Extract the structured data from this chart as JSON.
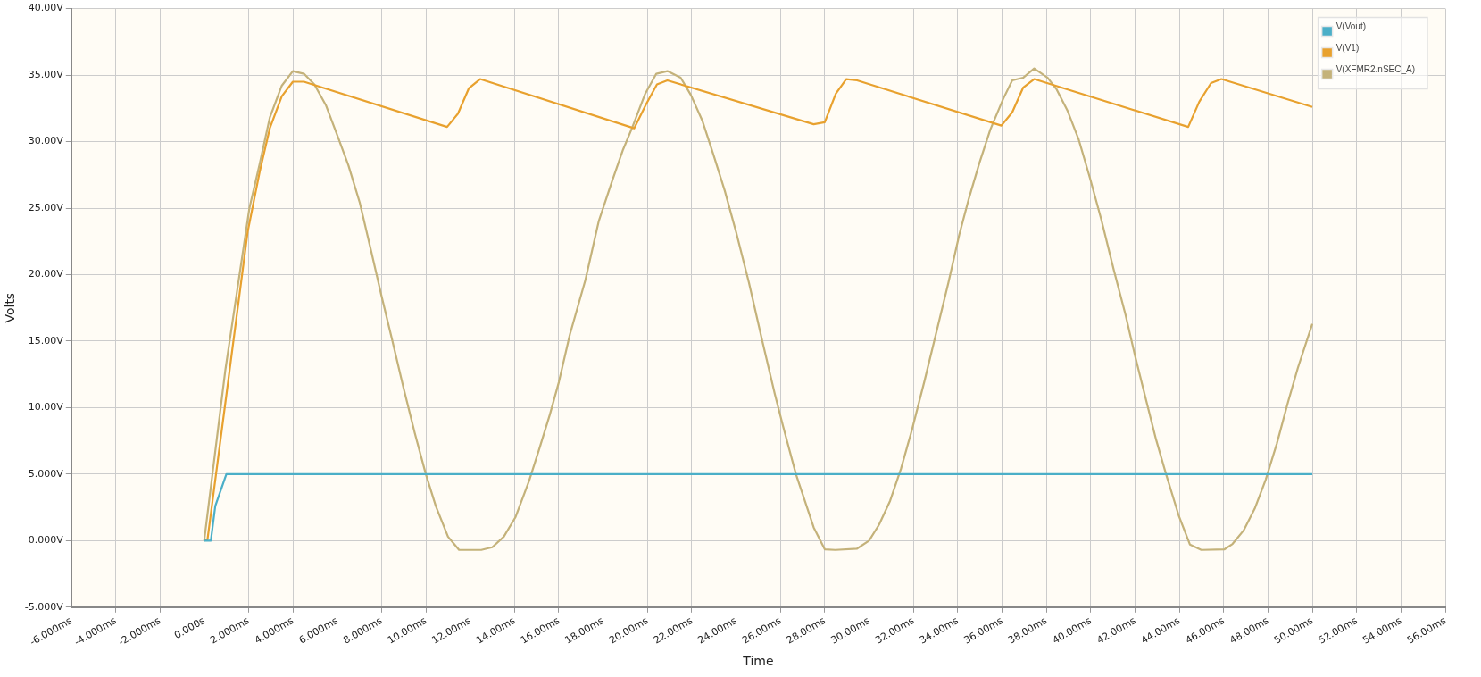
{
  "chart_data": {
    "type": "line",
    "xlabel": "Time",
    "ylabel": "Volts",
    "xlim": [
      -6,
      56
    ],
    "ylim": [
      -5,
      40
    ],
    "xticks": [
      {
        "value": -6,
        "label": "-6.000ms"
      },
      {
        "value": -4,
        "label": "-4.000ms"
      },
      {
        "value": -2,
        "label": "-2.000ms"
      },
      {
        "value": 0,
        "label": "0.000s"
      },
      {
        "value": 2,
        "label": "2.000ms"
      },
      {
        "value": 4,
        "label": "4.000ms"
      },
      {
        "value": 6,
        "label": "6.000ms"
      },
      {
        "value": 8,
        "label": "8.000ms"
      },
      {
        "value": 10,
        "label": "10.00ms"
      },
      {
        "value": 12,
        "label": "12.00ms"
      },
      {
        "value": 14,
        "label": "14.00ms"
      },
      {
        "value": 16,
        "label": "16.00ms"
      },
      {
        "value": 18,
        "label": "18.00ms"
      },
      {
        "value": 20,
        "label": "20.00ms"
      },
      {
        "value": 22,
        "label": "22.00ms"
      },
      {
        "value": 24,
        "label": "24.00ms"
      },
      {
        "value": 26,
        "label": "26.00ms"
      },
      {
        "value": 28,
        "label": "28.00ms"
      },
      {
        "value": 30,
        "label": "30.00ms"
      },
      {
        "value": 32,
        "label": "32.00ms"
      },
      {
        "value": 34,
        "label": "34.00ms"
      },
      {
        "value": 36,
        "label": "36.00ms"
      },
      {
        "value": 38,
        "label": "38.00ms"
      },
      {
        "value": 40,
        "label": "40.00ms"
      },
      {
        "value": 42,
        "label": "42.00ms"
      },
      {
        "value": 44,
        "label": "44.00ms"
      },
      {
        "value": 46,
        "label": "46.00ms"
      },
      {
        "value": 48,
        "label": "48.00ms"
      },
      {
        "value": 50,
        "label": "50.00ms"
      },
      {
        "value": 52,
        "label": "52.00ms"
      },
      {
        "value": 54,
        "label": "54.00ms"
      },
      {
        "value": 56,
        "label": "56.00ms"
      }
    ],
    "yticks": [
      {
        "value": -5,
        "label": "-5.000V"
      },
      {
        "value": 0,
        "label": "0.000V"
      },
      {
        "value": 5,
        "label": "5.000V"
      },
      {
        "value": 10,
        "label": "10.00V"
      },
      {
        "value": 15,
        "label": "15.00V"
      },
      {
        "value": 20,
        "label": "20.00V"
      },
      {
        "value": 25,
        "label": "25.00V"
      },
      {
        "value": 30,
        "label": "30.00V"
      },
      {
        "value": 35,
        "label": "35.00V"
      },
      {
        "value": 40,
        "label": "40.00V"
      }
    ],
    "grid": true,
    "legend": "top right",
    "marker": "none",
    "line_style": "solid",
    "series": [
      {
        "name": "V(Vout)",
        "color": "#4bafc8",
        "x": [
          0,
          0.3,
          0.5,
          1.0,
          50
        ],
        "values": [
          0,
          0,
          2.6,
          5,
          5
        ]
      },
      {
        "name": "V(V1)",
        "color": "#e8a12e",
        "x": [
          0,
          0.15,
          1.96,
          2.5,
          2.96,
          3.5,
          4.0,
          4.5,
          10.96,
          11.45,
          11.94,
          12.45,
          19.4,
          19.94,
          20.43,
          20.9,
          27.5,
          28.0,
          28.5,
          28.97,
          29.46,
          35.97,
          36.46,
          36.95,
          37.45,
          44.4,
          44.9,
          45.43,
          45.9,
          50
        ],
        "values": [
          0,
          0.1,
          23.2,
          27.7,
          31,
          33.4,
          34.5,
          34.5,
          31.1,
          32.1,
          34,
          34.7,
          31,
          32.8,
          34.3,
          34.6,
          31.3,
          31.45,
          33.6,
          34.7,
          34.6,
          31.2,
          32.2,
          34.05,
          34.7,
          31.1,
          33,
          34.4,
          34.7,
          32.6
        ]
      },
      {
        "name": "V(XFMR2.nSEC_A)",
        "color": "#c4b27a",
        "x": [
          0,
          0.96,
          2.04,
          2.5,
          2.96,
          3.5,
          4.0,
          4.5,
          4.97,
          5.5,
          6.0,
          6.51,
          7.02,
          7.53,
          8.0,
          8.48,
          8.99,
          9.5,
          10.0,
          10.45,
          11.0,
          11.5,
          12.5,
          13.0,
          13.52,
          14.04,
          14.66,
          15.1,
          15.6,
          16.0,
          16.5,
          17.2,
          17.8,
          18.4,
          18.9,
          19.3,
          19.9,
          20.4,
          20.9,
          21.5,
          21.96,
          22.47,
          22.98,
          23.49,
          24.0,
          24.58,
          25.17,
          25.75,
          26.12,
          26.7,
          27.0,
          27.5,
          28.0,
          28.48,
          29.46,
          30.0,
          30.45,
          30.95,
          31.44,
          31.93,
          32.5,
          33.1,
          33.58,
          34.07,
          34.5,
          34.98,
          35.47,
          36.05,
          36.46,
          36.95,
          37.45,
          38.06,
          38.47,
          38.96,
          39.45,
          39.96,
          40.47,
          41.05,
          41.57,
          42.0,
          42.51,
          42.95,
          43.4,
          43.97,
          44.48,
          44.99,
          46.04,
          46.4,
          46.9,
          47.4,
          47.9,
          48.4,
          48.9,
          49.35,
          50
        ],
        "values": [
          0,
          12.9,
          25,
          28.3,
          31.8,
          34.2,
          35.3,
          35.1,
          34.3,
          32.7,
          30.5,
          28.2,
          25.4,
          21.8,
          18.4,
          15.1,
          11.5,
          8.1,
          5,
          2.6,
          0.3,
          -0.7,
          -0.7,
          -0.5,
          0.3,
          1.75,
          4.5,
          6.8,
          9.5,
          11.9,
          15.5,
          19.6,
          24,
          27,
          29.4,
          31,
          33.6,
          35.1,
          35.3,
          34.8,
          33.5,
          31.6,
          29,
          26.3,
          23.2,
          19.4,
          15.1,
          11,
          8.6,
          5,
          3.5,
          1,
          -0.65,
          -0.7,
          -0.6,
          0,
          1.2,
          3,
          5.4,
          8.3,
          12,
          16.1,
          19.4,
          23,
          25.7,
          28.4,
          30.9,
          33.2,
          34.6,
          34.8,
          35.5,
          34.8,
          33.9,
          32.3,
          30.2,
          27.3,
          24.2,
          20.3,
          17,
          13.9,
          10.5,
          7.6,
          5,
          1.9,
          -0.3,
          -0.7,
          -0.65,
          -0.25,
          0.77,
          2.4,
          4.6,
          7.3,
          10.4,
          13,
          16.3
        ]
      }
    ]
  }
}
